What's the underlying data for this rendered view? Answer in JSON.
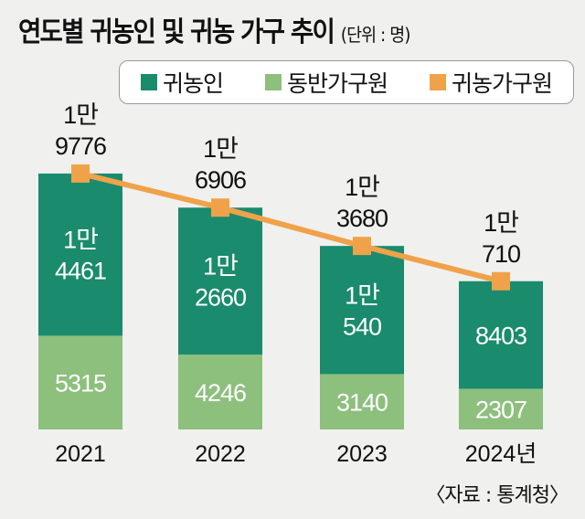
{
  "title": "연도별 귀농인 및 귀농 가구 추이",
  "unit": "(단위 : 명)",
  "source": "〈자료 : 통계청〉",
  "colors": {
    "farmers": "#1a8b6d",
    "family": "#8dbf7d",
    "households": "#f0a24a"
  },
  "chart_data": {
    "type": "bar",
    "title": "연도별 귀농인 및 귀농 가구 추이",
    "categories": [
      "2021",
      "2022",
      "2023",
      "2024년"
    ],
    "legend": [
      "귀농인",
      "동반가구원",
      "귀농가구원"
    ],
    "series": [
      {
        "name": "귀농인",
        "values": [
          14461,
          12660,
          10540,
          8403
        ],
        "labels": [
          [
            "1만",
            "4461"
          ],
          [
            "1만",
            "2660"
          ],
          [
            "1만",
            "540"
          ],
          [
            "8403"
          ]
        ]
      },
      {
        "name": "동반가구원",
        "values": [
          5315,
          4246,
          3140,
          2307
        ],
        "labels": [
          [
            "5315"
          ],
          [
            "4246"
          ],
          [
            "3140"
          ],
          [
            "2307"
          ]
        ]
      },
      {
        "name": "귀농가구원",
        "values": [
          19776,
          16906,
          13680,
          10710
        ],
        "labels": [
          [
            "1만",
            "9776"
          ],
          [
            "1만",
            "6906"
          ],
          [
            "1만",
            "3680"
          ],
          [
            "1만",
            "710"
          ]
        ]
      }
    ],
    "stacked": true,
    "legend_position": "top"
  }
}
